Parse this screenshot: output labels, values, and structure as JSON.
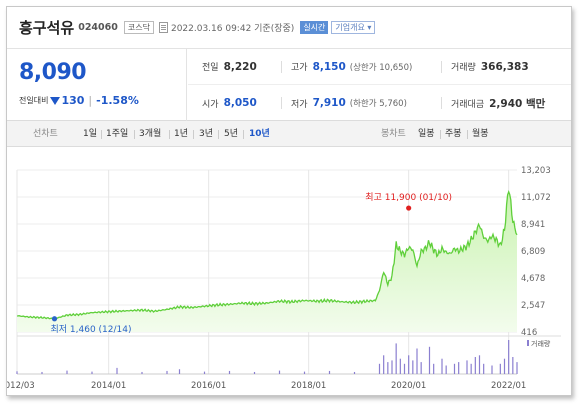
{
  "header": {
    "name": "흥구석유",
    "code": "024060",
    "market": "코스닥",
    "datetime": "2022.03.16 09:42 기준(장중)",
    "live": "실시간",
    "company_info": "기업개요 ▾"
  },
  "summary": {
    "price": "8,090",
    "change_label": "전일대비",
    "change": "130",
    "change_pct": "-1.58%",
    "prev_close_label": "전일",
    "prev_close": "8,220",
    "high_label": "고가",
    "high": "8,150",
    "upper_limit": "(상한가 10,650)",
    "volume_label": "거래량",
    "volume": "366,383",
    "open_label": "시가",
    "open": "8,050",
    "low_label": "저가",
    "low": "7,910",
    "lower_limit": "(하한가 5,760)",
    "amount_label": "거래대금",
    "amount": "2,940 백만"
  },
  "tabs": {
    "line_label": "선차트",
    "line_tabs": [
      "1일",
      "1주일",
      "3개월",
      "1년",
      "3년",
      "5년",
      "10년"
    ],
    "active_line_tab": "10년",
    "candle_label": "봉차트",
    "candle_tabs": [
      "일봉",
      "주봉",
      "월봉"
    ]
  },
  "colors": {
    "line": "#5fcf3a",
    "fill_top": "#c9f3b0",
    "fill_bottom": "#f3fced",
    "volume_bar": "#8a7fd0",
    "high_marker": "#e02020",
    "low_marker": "#2a64c8",
    "price_blue": "#1e57c8"
  },
  "chart_data": {
    "type": "area",
    "title": "",
    "xlabel": "",
    "ylabel": "",
    "x_ticks": [
      "2012/03",
      "2014/01",
      "2016/01",
      "2018/01",
      "2020/01",
      "2022/01"
    ],
    "y_ticks": [
      416,
      2547,
      4678,
      6809,
      8941,
      11072,
      13203
    ],
    "ylim": [
      416,
      13203
    ],
    "xlim": [
      "2012-03",
      "2022-03"
    ],
    "grid": true,
    "annotations": {
      "high": {
        "label": "최고 11,900 (01/10)",
        "value": 11900,
        "date": "2022-01-10"
      },
      "low": {
        "label": "최저 1,460 (12/14)",
        "value": 1460,
        "date": "2012-12-14"
      }
    },
    "volume_legend": "거래량",
    "series": [
      {
        "values": [
          [
            "2012-03",
            1700
          ],
          [
            "2012-06",
            1600
          ],
          [
            "2012-09",
            1550
          ],
          [
            "2012-12",
            1460
          ],
          [
            "2013-03",
            1750
          ],
          [
            "2013-06",
            1800
          ],
          [
            "2013-09",
            1950
          ],
          [
            "2013-12",
            2000
          ],
          [
            "2014-03",
            2050
          ],
          [
            "2014-06",
            2100
          ],
          [
            "2014-09",
            2150
          ],
          [
            "2014-12",
            2050
          ],
          [
            "2015-03",
            2200
          ],
          [
            "2015-06",
            2400
          ],
          [
            "2015-09",
            2350
          ],
          [
            "2015-12",
            2450
          ],
          [
            "2016-03",
            2550
          ],
          [
            "2016-06",
            2600
          ],
          [
            "2016-09",
            2700
          ],
          [
            "2016-12",
            2650
          ],
          [
            "2017-03",
            2700
          ],
          [
            "2017-06",
            2850
          ],
          [
            "2017-09",
            2800
          ],
          [
            "2017-12",
            2900
          ],
          [
            "2018-03",
            2850
          ],
          [
            "2018-06",
            2900
          ],
          [
            "2018-09",
            2800
          ],
          [
            "2018-12",
            2750
          ],
          [
            "2019-03",
            2850
          ],
          [
            "2019-05",
            2900
          ],
          [
            "2019-06",
            3700
          ],
          [
            "2019-07",
            5200
          ],
          [
            "2019-08",
            4200
          ],
          [
            "2019-09",
            4800
          ],
          [
            "2019-10",
            7300
          ],
          [
            "2019-11",
            6800
          ],
          [
            "2019-12",
            6500
          ],
          [
            "2020-01",
            7100
          ],
          [
            "2020-02",
            6900
          ],
          [
            "2020-03",
            5600
          ],
          [
            "2020-04",
            6800
          ],
          [
            "2020-05",
            7000
          ],
          [
            "2020-06",
            7500
          ],
          [
            "2020-07",
            6900
          ],
          [
            "2020-08",
            6500
          ],
          [
            "2020-09",
            7000
          ],
          [
            "2020-10",
            6700
          ],
          [
            "2020-11",
            6600
          ],
          [
            "2020-12",
            7000
          ],
          [
            "2021-01",
            6800
          ],
          [
            "2021-02",
            7000
          ],
          [
            "2021-03",
            7200
          ],
          [
            "2021-04",
            7700
          ],
          [
            "2021-05",
            8300
          ],
          [
            "2021-06",
            8900
          ],
          [
            "2021-07",
            7900
          ],
          [
            "2021-08",
            7600
          ],
          [
            "2021-09",
            8000
          ],
          [
            "2021-10",
            7700
          ],
          [
            "2021-11",
            7200
          ],
          [
            "2021-12",
            8500
          ],
          [
            "2022-01",
            11900
          ],
          [
            "2022-02",
            9200
          ],
          [
            "2022-03",
            8090
          ]
        ]
      }
    ],
    "volume": [
      [
        "2012-03",
        0.08
      ],
      [
        "2012-09",
        0.06
      ],
      [
        "2013-03",
        0.1
      ],
      [
        "2013-09",
        0.07
      ],
      [
        "2014-03",
        0.18
      ],
      [
        "2014-09",
        0.06
      ],
      [
        "2015-03",
        0.09
      ],
      [
        "2015-06",
        0.14
      ],
      [
        "2015-12",
        0.07
      ],
      [
        "2016-06",
        0.09
      ],
      [
        "2016-12",
        0.06
      ],
      [
        "2017-06",
        0.1
      ],
      [
        "2017-12",
        0.07
      ],
      [
        "2018-06",
        0.09
      ],
      [
        "2018-12",
        0.06
      ],
      [
        "2019-06",
        0.3
      ],
      [
        "2019-07",
        0.55
      ],
      [
        "2019-08",
        0.35
      ],
      [
        "2019-09",
        0.4
      ],
      [
        "2019-10",
        0.9
      ],
      [
        "2019-11",
        0.45
      ],
      [
        "2019-12",
        0.3
      ],
      [
        "2020-01",
        0.55
      ],
      [
        "2020-02",
        0.4
      ],
      [
        "2020-03",
        0.75
      ],
      [
        "2020-04",
        0.35
      ],
      [
        "2020-06",
        0.8
      ],
      [
        "2020-07",
        0.3
      ],
      [
        "2020-09",
        0.45
      ],
      [
        "2020-10",
        0.25
      ],
      [
        "2020-12",
        0.3
      ],
      [
        "2021-01",
        0.35
      ],
      [
        "2021-03",
        0.4
      ],
      [
        "2021-04",
        0.3
      ],
      [
        "2021-05",
        0.5
      ],
      [
        "2021-06",
        0.55
      ],
      [
        "2021-07",
        0.3
      ],
      [
        "2021-09",
        0.25
      ],
      [
        "2021-11",
        0.3
      ],
      [
        "2021-12",
        0.45
      ],
      [
        "2022-01",
        1.0
      ],
      [
        "2022-02",
        0.5
      ],
      [
        "2022-03",
        0.35
      ]
    ]
  }
}
